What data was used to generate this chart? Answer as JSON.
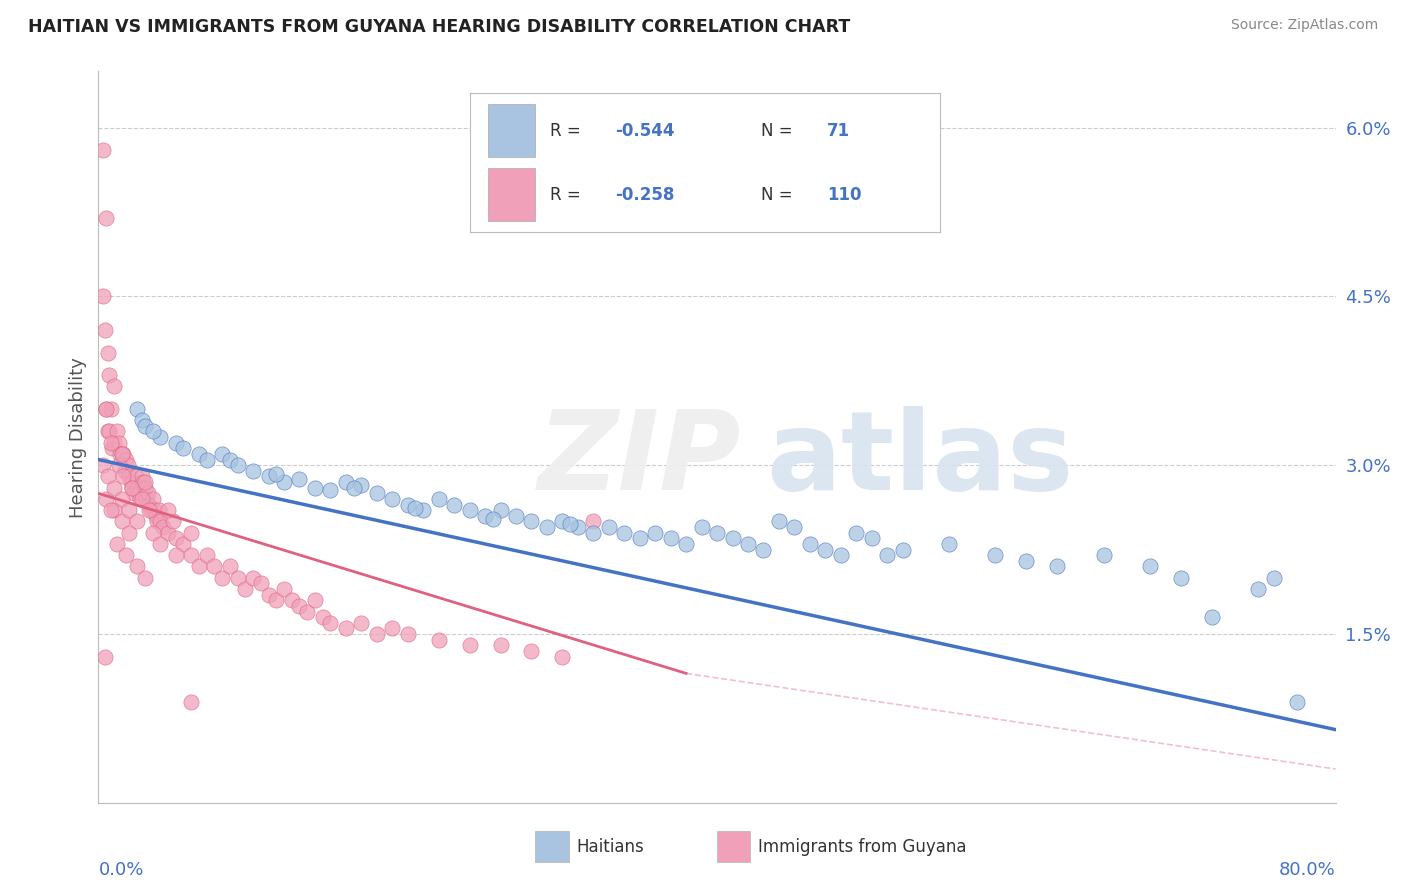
{
  "title": "HAITIAN VS IMMIGRANTS FROM GUYANA HEARING DISABILITY CORRELATION CHART",
  "source": "Source: ZipAtlas.com",
  "ylabel": "Hearing Disability",
  "xmin": 0.0,
  "xmax": 80.0,
  "ymin": 0.0,
  "ymax": 6.5,
  "ytick_vals": [
    1.5,
    3.0,
    4.5,
    6.0
  ],
  "ytick_labels": [
    "1.5%",
    "3.0%",
    "4.5%",
    "6.0%"
  ],
  "color_blue": "#a8c4e0",
  "color_pink": "#f0a0b8",
  "line_blue": "#4472c4",
  "line_pink": "#e06080",
  "blue_line_x": [
    0,
    80
  ],
  "blue_line_y": [
    3.05,
    0.65
  ],
  "pink_line_x": [
    0,
    38
  ],
  "pink_line_y": [
    2.75,
    1.15
  ],
  "haitians": [
    [
      2.5,
      3.5
    ],
    [
      2.8,
      3.4
    ],
    [
      3.0,
      3.35
    ],
    [
      5.0,
      3.2
    ],
    [
      5.5,
      3.15
    ],
    [
      8.0,
      3.1
    ],
    [
      8.5,
      3.05
    ],
    [
      10.0,
      2.95
    ],
    [
      11.0,
      2.9
    ],
    [
      12.0,
      2.85
    ],
    [
      14.0,
      2.8
    ],
    [
      15.0,
      2.78
    ],
    [
      16.0,
      2.85
    ],
    [
      17.0,
      2.82
    ],
    [
      18.0,
      2.75
    ],
    [
      19.0,
      2.7
    ],
    [
      20.0,
      2.65
    ],
    [
      21.0,
      2.6
    ],
    [
      22.0,
      2.7
    ],
    [
      23.0,
      2.65
    ],
    [
      24.0,
      2.6
    ],
    [
      25.0,
      2.55
    ],
    [
      26.0,
      2.6
    ],
    [
      27.0,
      2.55
    ],
    [
      28.0,
      2.5
    ],
    [
      29.0,
      2.45
    ],
    [
      30.0,
      2.5
    ],
    [
      31.0,
      2.45
    ],
    [
      32.0,
      2.4
    ],
    [
      33.0,
      2.45
    ],
    [
      34.0,
      2.4
    ],
    [
      35.0,
      2.35
    ],
    [
      36.0,
      2.4
    ],
    [
      37.0,
      2.35
    ],
    [
      38.0,
      2.3
    ],
    [
      39.0,
      2.45
    ],
    [
      40.0,
      2.4
    ],
    [
      41.0,
      2.35
    ],
    [
      42.0,
      2.3
    ],
    [
      43.0,
      2.25
    ],
    [
      44.0,
      2.5
    ],
    [
      45.0,
      2.45
    ],
    [
      46.0,
      2.3
    ],
    [
      47.0,
      2.25
    ],
    [
      48.0,
      2.2
    ],
    [
      49.0,
      2.4
    ],
    [
      50.0,
      2.35
    ],
    [
      51.0,
      2.2
    ],
    [
      52.0,
      2.25
    ],
    [
      55.0,
      2.3
    ],
    [
      58.0,
      2.2
    ],
    [
      60.0,
      2.15
    ],
    [
      62.0,
      2.1
    ],
    [
      65.0,
      2.2
    ],
    [
      68.0,
      2.1
    ],
    [
      70.0,
      2.0
    ],
    [
      72.0,
      1.65
    ],
    [
      75.0,
      1.9
    ],
    [
      76.0,
      2.0
    ],
    [
      77.5,
      0.9
    ],
    [
      4.0,
      3.25
    ],
    [
      6.5,
      3.1
    ],
    [
      9.0,
      3.0
    ],
    [
      13.0,
      2.88
    ],
    [
      3.5,
      3.3
    ],
    [
      7.0,
      3.05
    ],
    [
      11.5,
      2.92
    ],
    [
      16.5,
      2.8
    ],
    [
      20.5,
      2.62
    ],
    [
      25.5,
      2.52
    ],
    [
      30.5,
      2.48
    ]
  ],
  "guyana": [
    [
      0.3,
      5.8
    ],
    [
      0.5,
      5.2
    ],
    [
      0.4,
      4.2
    ],
    [
      0.6,
      4.0
    ],
    [
      0.3,
      4.5
    ],
    [
      0.7,
      3.8
    ],
    [
      0.5,
      3.5
    ],
    [
      0.8,
      3.5
    ],
    [
      1.0,
      3.7
    ],
    [
      0.6,
      3.3
    ],
    [
      0.7,
      3.3
    ],
    [
      0.9,
      3.15
    ],
    [
      1.0,
      3.2
    ],
    [
      1.2,
      3.3
    ],
    [
      1.3,
      3.2
    ],
    [
      1.4,
      3.1
    ],
    [
      1.5,
      3.1
    ],
    [
      1.6,
      3.1
    ],
    [
      1.7,
      2.95
    ],
    [
      1.8,
      3.05
    ],
    [
      1.9,
      3.0
    ],
    [
      2.0,
      2.9
    ],
    [
      2.1,
      2.85
    ],
    [
      2.2,
      2.8
    ],
    [
      2.3,
      2.75
    ],
    [
      2.4,
      2.9
    ],
    [
      2.5,
      2.8
    ],
    [
      2.6,
      2.75
    ],
    [
      2.7,
      2.7
    ],
    [
      2.8,
      2.9
    ],
    [
      2.9,
      2.85
    ],
    [
      3.0,
      2.8
    ],
    [
      3.1,
      2.7
    ],
    [
      3.2,
      2.75
    ],
    [
      3.3,
      2.65
    ],
    [
      3.4,
      2.6
    ],
    [
      3.5,
      2.7
    ],
    [
      3.6,
      2.6
    ],
    [
      3.7,
      2.55
    ],
    [
      3.8,
      2.5
    ],
    [
      3.9,
      2.6
    ],
    [
      4.0,
      2.5
    ],
    [
      4.2,
      2.45
    ],
    [
      4.5,
      2.4
    ],
    [
      4.8,
      2.5
    ],
    [
      5.0,
      2.35
    ],
    [
      5.5,
      2.3
    ],
    [
      6.0,
      2.2
    ],
    [
      6.5,
      2.1
    ],
    [
      7.0,
      2.2
    ],
    [
      7.5,
      2.1
    ],
    [
      8.0,
      2.0
    ],
    [
      8.5,
      2.1
    ],
    [
      9.0,
      2.0
    ],
    [
      9.5,
      1.9
    ],
    [
      10.0,
      2.0
    ],
    [
      10.5,
      1.95
    ],
    [
      11.0,
      1.85
    ],
    [
      11.5,
      1.8
    ],
    [
      12.0,
      1.9
    ],
    [
      12.5,
      1.8
    ],
    [
      13.0,
      1.75
    ],
    [
      13.5,
      1.7
    ],
    [
      14.0,
      1.8
    ],
    [
      14.5,
      1.65
    ],
    [
      15.0,
      1.6
    ],
    [
      16.0,
      1.55
    ],
    [
      17.0,
      1.6
    ],
    [
      18.0,
      1.5
    ],
    [
      19.0,
      1.55
    ],
    [
      20.0,
      1.5
    ],
    [
      22.0,
      1.45
    ],
    [
      24.0,
      1.4
    ],
    [
      26.0,
      1.4
    ],
    [
      28.0,
      1.35
    ],
    [
      30.0,
      1.3
    ],
    [
      1.0,
      2.6
    ],
    [
      1.5,
      2.5
    ],
    [
      2.0,
      2.4
    ],
    [
      0.5,
      2.7
    ],
    [
      0.8,
      2.6
    ],
    [
      1.2,
      2.3
    ],
    [
      1.8,
      2.2
    ],
    [
      2.5,
      2.1
    ],
    [
      3.0,
      2.0
    ],
    [
      0.3,
      3.0
    ],
    [
      0.6,
      2.9
    ],
    [
      1.0,
      2.8
    ],
    [
      1.5,
      2.7
    ],
    [
      2.0,
      2.6
    ],
    [
      2.5,
      2.5
    ],
    [
      3.5,
      2.4
    ],
    [
      4.0,
      2.3
    ],
    [
      5.0,
      2.2
    ],
    [
      0.4,
      1.3
    ],
    [
      6.0,
      0.9
    ],
    [
      32.0,
      2.5
    ],
    [
      1.3,
      3.0
    ],
    [
      1.6,
      2.9
    ],
    [
      2.2,
      2.8
    ],
    [
      2.8,
      2.7
    ],
    [
      3.3,
      2.6
    ],
    [
      0.5,
      3.5
    ],
    [
      0.8,
      3.2
    ],
    [
      1.5,
      3.1
    ],
    [
      3.0,
      2.85
    ],
    [
      4.5,
      2.6
    ],
    [
      6.0,
      2.4
    ]
  ]
}
